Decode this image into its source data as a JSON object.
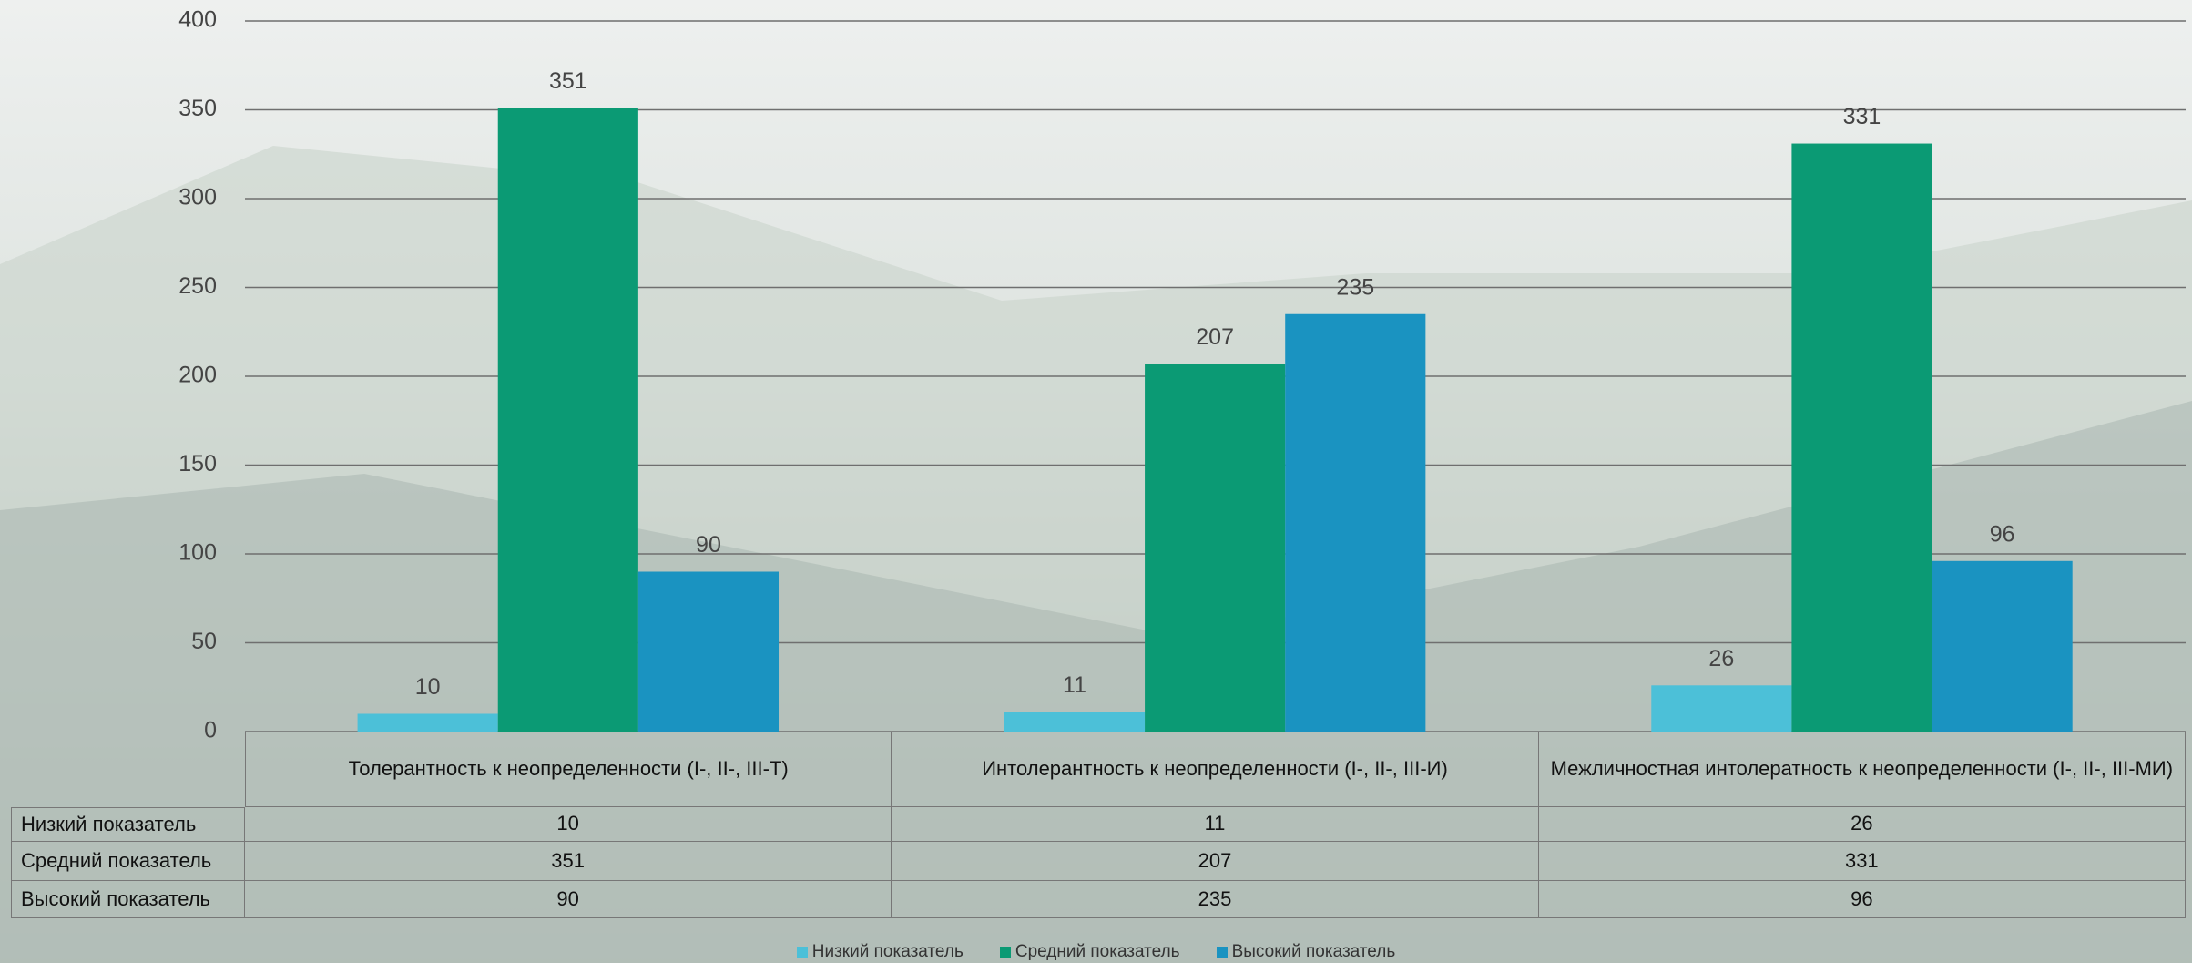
{
  "chart_data": {
    "type": "bar",
    "categories": [
      "Толерантность к неопределенности (I-, II-, III-Т)",
      "Интолерантность к неопределенности (I-, II-, III-И)",
      "Межличностная интолератность к неопределенности (I-, II-, III-МИ)"
    ],
    "series": [
      {
        "name": "Низкий показатель",
        "color": "#4cc0d8",
        "values": [
          10,
          11,
          26
        ]
      },
      {
        "name": "Средний показатель",
        "color": "#0b9a74",
        "values": [
          351,
          207,
          331
        ]
      },
      {
        "name": "Высокий показатель",
        "color": "#1a93c1",
        "values": [
          90,
          235,
          96
        ]
      }
    ],
    "ylim": [
      0,
      400
    ],
    "yticks": [
      0,
      50,
      100,
      150,
      200,
      250,
      300,
      350,
      400
    ],
    "grid": true
  }
}
